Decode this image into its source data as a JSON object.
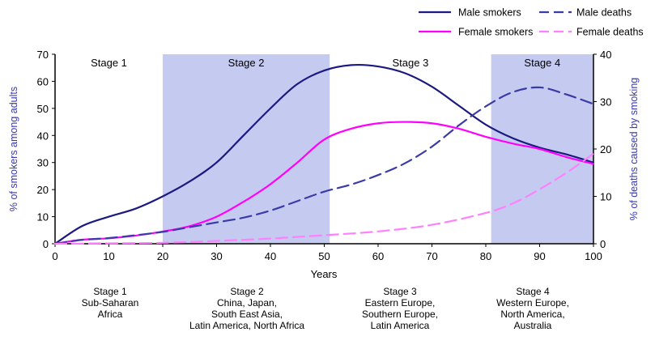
{
  "chart_data": {
    "type": "line",
    "xlabel": "Years",
    "ylabel_left": "% of smokers among adults",
    "ylabel_right": "% of deaths caused by smoking",
    "xlim": [
      0,
      100
    ],
    "ylim_left": [
      0,
      70
    ],
    "ylim_right": [
      0,
      40
    ],
    "x_ticks": [
      "0",
      "10",
      "20",
      "30",
      "40",
      "50",
      "60",
      "70",
      "80",
      "90",
      "100"
    ],
    "y_left_ticks": [
      "0",
      "10",
      "20",
      "30",
      "40",
      "50",
      "60",
      "70"
    ],
    "y_right_ticks": [
      "0",
      "10",
      "20",
      "30",
      "40"
    ],
    "stages": [
      {
        "label": "Stage 1",
        "x0": 0,
        "x1": 20,
        "shaded": false
      },
      {
        "label": "Stage 2",
        "x0": 20,
        "x1": 51,
        "shaded": true
      },
      {
        "label": "Stage 3",
        "x0": 51,
        "x1": 81,
        "shaded": false
      },
      {
        "label": "Stage 4",
        "x0": 81,
        "x1": 100,
        "shaded": true
      }
    ],
    "series": [
      {
        "name": "Male smokers",
        "axis": "left",
        "style": "solid",
        "color": "#1a1a80",
        "x": [
          0,
          5,
          10,
          15,
          20,
          25,
          30,
          35,
          40,
          45,
          50,
          55,
          60,
          65,
          70,
          75,
          80,
          85,
          90,
          95,
          100
        ],
        "y": [
          0,
          6.5,
          10,
          13,
          17.5,
          23,
          30,
          40,
          50,
          59,
          64,
          66,
          65.5,
          63,
          58,
          51,
          44,
          39,
          35.5,
          33,
          30
        ]
      },
      {
        "name": "Female smokers",
        "axis": "left",
        "style": "solid",
        "color": "#ff00ff",
        "x": [
          0,
          5,
          10,
          15,
          20,
          25,
          30,
          35,
          40,
          45,
          50,
          55,
          60,
          65,
          70,
          75,
          80,
          85,
          90,
          95,
          100
        ],
        "y": [
          0,
          1.5,
          2,
          3,
          4.5,
          6.5,
          10,
          15.5,
          22,
          30,
          38.5,
          42.5,
          44.5,
          45,
          44.5,
          42.5,
          39.5,
          37,
          35,
          32,
          29.5
        ]
      },
      {
        "name": "Male deaths",
        "axis": "right",
        "style": "dashed",
        "color": "#3b3ba8",
        "x": [
          0,
          5,
          10,
          15,
          20,
          25,
          30,
          35,
          40,
          45,
          50,
          55,
          60,
          65,
          70,
          75,
          80,
          85,
          90,
          95,
          100
        ],
        "y": [
          0,
          0.8,
          1.2,
          1.8,
          2.5,
          3.5,
          4.5,
          5.5,
          7,
          9,
          11,
          12.5,
          14.5,
          17,
          20.5,
          25,
          29,
          32,
          33,
          31.5,
          29.5
        ]
      },
      {
        "name": "Female deaths",
        "axis": "right",
        "style": "dashed",
        "color": "#ff80ff",
        "x": [
          0,
          10,
          20,
          30,
          40,
          50,
          60,
          70,
          80,
          85,
          90,
          95,
          100
        ],
        "y": [
          0,
          0.1,
          0.2,
          0.6,
          1.1,
          1.8,
          2.6,
          4,
          6.5,
          8.5,
          11.5,
          15,
          19
        ]
      }
    ],
    "legend": [
      {
        "label": "Male smokers",
        "style": "solid",
        "color": "#1a1a80"
      },
      {
        "label": "Male deaths",
        "style": "dashed",
        "color": "#3b3ba8"
      },
      {
        "label": "Female smokers",
        "style": "solid",
        "color": "#ff00ff"
      },
      {
        "label": "Female deaths",
        "style": "dashed",
        "color": "#ff80ff"
      }
    ],
    "legend_position": "top-right",
    "colors": {
      "shade": "#c4caf0",
      "axis": "#000000",
      "axis_label": "#3a3aaa"
    }
  },
  "bottom_labels": [
    {
      "lines": [
        "Stage 1",
        "Sub-Saharan",
        "Africa"
      ]
    },
    {
      "lines": [
        "Stage 2",
        "China, Japan,",
        "South East Asia,",
        "Latin America, North Africa"
      ]
    },
    {
      "lines": [
        "Stage 3",
        "Eastern Europe,",
        "Southern Europe,",
        "Latin America"
      ]
    },
    {
      "lines": [
        "Stage 4",
        "Western Europe,",
        "North America,",
        "Australia"
      ]
    }
  ]
}
